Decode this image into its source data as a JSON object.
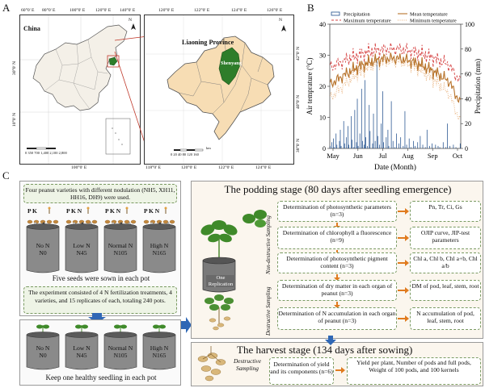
{
  "panels": {
    "a": "A",
    "b": "B",
    "c": "C"
  },
  "map": {
    "top_lon_labels": [
      "60°0' E",
      "80°0' E",
      "100°0' E",
      "120°0' E",
      "140°0' E"
    ],
    "left_lat_labels": [
      "30°0' N",
      "10°0' N"
    ],
    "bottom_lon_left": "100°0' E",
    "china_label": "China",
    "province_top_lon": [
      "120°0' E",
      "122°0' E",
      "124°0' E",
      "126°0' E"
    ],
    "province_right_lat": [
      "42°0' N",
      "40°0' N",
      "38°0' N"
    ],
    "province_bottom_lon": [
      "118°0' E",
      "120°0' E",
      "122°0' E",
      "124°0' E"
    ],
    "province_label": "Liaoning Province",
    "city_label": "Shenyang",
    "north_label": "N",
    "scale_left": "0 350 700    1,400    2,100    2,800",
    "scale_right": "0 20 40 80 120 160",
    "scale_unit": "km",
    "colors": {
      "province": "#f7ddb4",
      "city": "#2e7d2a",
      "border": "#555555"
    }
  },
  "chart_data": {
    "type": "bar+line",
    "legend": [
      "Precipitation",
      "Mean temperature",
      "Maximum temperature",
      "Minimum temperature"
    ],
    "xlabel": "Date (Month)",
    "ylabel_left": "Air temprature (°C)",
    "ylabel_right": "Precipitation (mm)",
    "x_ticks": [
      "May",
      "Jun",
      "Jul",
      "Aug",
      "Sep",
      "Oct"
    ],
    "y_left_ticks": [
      "0",
      "10",
      "20",
      "30",
      "40"
    ],
    "y_right_ticks": [
      "0",
      "20",
      "40",
      "60",
      "80",
      "100"
    ],
    "ylim_left": [
      0,
      40
    ],
    "ylim_right": [
      0,
      100
    ],
    "series": [
      {
        "name": "Precipitation",
        "type": "bar",
        "color": "#1f4e8c",
        "values": [
          2,
          0,
          5,
          0,
          8,
          1,
          0,
          12,
          3,
          0,
          0,
          6,
          15,
          2,
          0,
          0,
          22,
          4,
          0,
          9,
          0,
          18,
          3,
          0,
          0,
          26,
          7,
          0,
          1,
          31,
          0,
          5,
          40,
          2,
          0,
          12,
          0,
          48,
          6,
          0,
          3,
          55,
          9,
          0,
          2,
          0,
          35,
          14,
          0,
          0,
          4,
          28,
          0,
          6,
          0,
          72,
          10,
          0,
          3,
          0,
          20,
          0,
          46,
          5,
          0,
          0,
          9,
          0,
          15,
          2,
          0,
          0,
          38,
          0,
          6,
          0,
          1,
          0,
          12,
          0,
          0,
          4,
          0,
          9,
          0,
          0,
          2,
          0,
          30,
          0,
          3,
          0,
          0,
          8,
          0,
          1,
          0,
          0,
          6,
          0,
          2,
          0,
          0,
          5,
          0,
          0,
          10,
          0,
          0,
          3,
          0,
          0,
          1,
          0,
          15,
          0,
          0,
          2,
          0,
          0,
          4,
          0,
          0,
          0,
          3,
          0,
          0,
          2,
          0,
          1,
          0,
          0,
          0,
          5,
          0,
          0,
          1,
          0,
          20,
          0,
          0,
          2,
          0,
          0,
          0,
          3,
          0,
          0,
          1,
          0,
          0,
          0,
          0,
          4
        ]
      },
      {
        "name": "Mean temperature",
        "type": "line",
        "color": "#b8742c"
      },
      {
        "name": "Maximum temperature",
        "type": "line",
        "color": "#d64545",
        "dash": "3,2"
      },
      {
        "name": "Minimum temperature",
        "type": "line",
        "color": "#e8b07a",
        "dash": "1,1.5"
      }
    ]
  },
  "c": {
    "varieties_note": "Four peanut varieties with different nodulation (NH5, XH11, HH16, DH9) were used.",
    "pots_top": [
      {
        "fert": "P K",
        "name": "No N",
        "rate": "N0"
      },
      {
        "fert": "P K N",
        "name": "Low N",
        "rate": "N45"
      },
      {
        "fert": "P K N",
        "name": "Normal N",
        "rate": "N105"
      },
      {
        "fert": "P K N",
        "name": "High N",
        "rate": "N165"
      }
    ],
    "seeds_caption": "Five seeds were sown in each pot",
    "experiment_note": "The experiment consisted of 4 N fertilization treatments, 4 varieties, and 15 replicates of each, totaling 240 pots.",
    "pots_bottom": [
      {
        "name": "No N",
        "rate": "N0"
      },
      {
        "name": "Low N",
        "rate": "N45"
      },
      {
        "name": "Normal N",
        "rate": "N105"
      },
      {
        "name": "High N",
        "rate": "N165"
      }
    ],
    "seedling_caption": "Keep one healthy seedling in each pot",
    "podding_title": "The podding stage (80 days after seedling emergence)",
    "one_replication": "One Replication",
    "non_destructive": "Non-destructive Sampling",
    "destructive": "Destructive Sampling",
    "steps": [
      {
        "task": "Determination of photosynthetic parameters (n=3)",
        "result": "Pn, Tr, Ci, Gs"
      },
      {
        "task": "Determination of chlorophyll a fluorescence (n=9)",
        "result": "OJIP curve, JIP-test parameters"
      },
      {
        "task": "Determination of photosynthetic pigment content (n=3)",
        "result": "Chl a, Chl b, Chl a+b, Chl a/b"
      },
      {
        "task": "Determination of dry matter in each organ of peanut (n=3)",
        "result": "DM of pod, leaf, stem, root"
      },
      {
        "task": "Determination of N accumulation in each organ of peanut (n=3)",
        "result": "N accumulation of pod, leaf, stem, root"
      }
    ],
    "harvest_title": "The harvest stage (134 days after sowing)",
    "harvest_destructive": "Destructive Sampling",
    "harvest_task": "Determination of yield and its components (n=6)",
    "harvest_result": "Yield per plant, Number of pods and full pods, Weight of 100 pods, and 100 kernels"
  }
}
